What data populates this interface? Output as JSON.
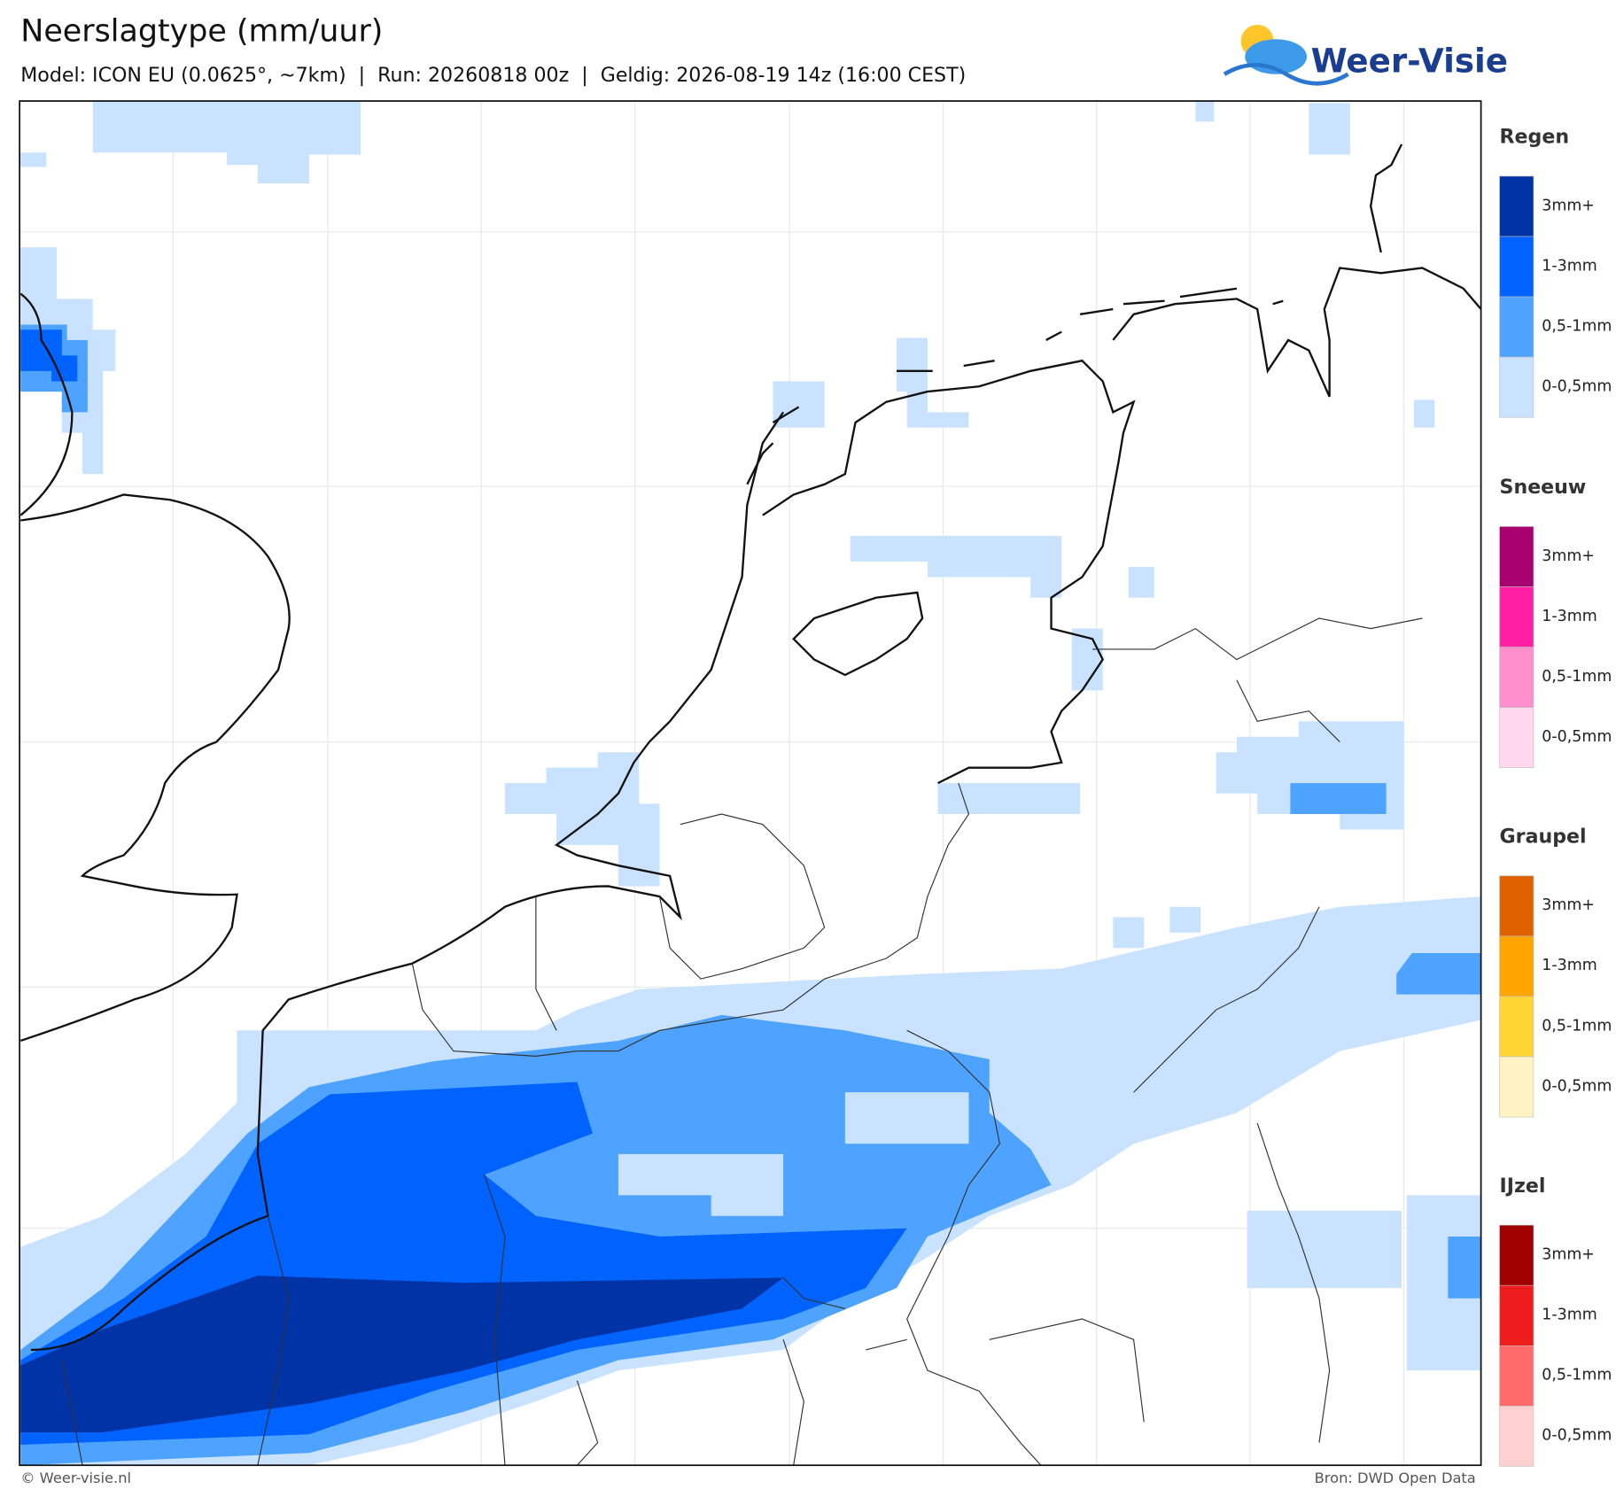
{
  "header": {
    "title": "Neerslagtype (mm/uur)",
    "subtitle": "Model: ICON EU (0.0625°, ~7km)  |  Run: 20260818 00z  |  Geldig: 2026-08-19 14z (16:00 CEST)",
    "logo": "Weer-Visie"
  },
  "legend": [
    {
      "title": "Regen",
      "items": [
        {
          "label": "3mm+",
          "color": "#0033a6"
        },
        {
          "label": "1-3mm",
          "color": "#0062ff"
        },
        {
          "label": "0,5-1mm",
          "color": "#4da3ff"
        },
        {
          "label": "0-0,5mm",
          "color": "#c8e2ff"
        }
      ]
    },
    {
      "title": "Sneeuw",
      "items": [
        {
          "label": "3mm+",
          "color": "#a8006e"
        },
        {
          "label": "1-3mm",
          "color": "#ff1fa2"
        },
        {
          "label": "0,5-1mm",
          "color": "#ff8fcc"
        },
        {
          "label": "0-0,5mm",
          "color": "#ffd8ee"
        }
      ]
    },
    {
      "title": "Graupel",
      "items": [
        {
          "label": "3mm+",
          "color": "#de6300"
        },
        {
          "label": "1-3mm",
          "color": "#ffa500"
        },
        {
          "label": "0,5-1mm",
          "color": "#ffd633"
        },
        {
          "label": "0-0,5mm",
          "color": "#fff3c4"
        }
      ]
    },
    {
      "title": "IJzel",
      "items": [
        {
          "label": "3mm+",
          "color": "#a00000"
        },
        {
          "label": "1-3mm",
          "color": "#ee1c1c"
        },
        {
          "label": "0,5-1mm",
          "color": "#ff6b6b"
        },
        {
          "label": "0-0,5mm",
          "color": "#ffd0d0"
        }
      ]
    }
  ],
  "footer": {
    "left": "© Weer-visie.nl",
    "right": "Bron: DWD Open Data"
  }
}
